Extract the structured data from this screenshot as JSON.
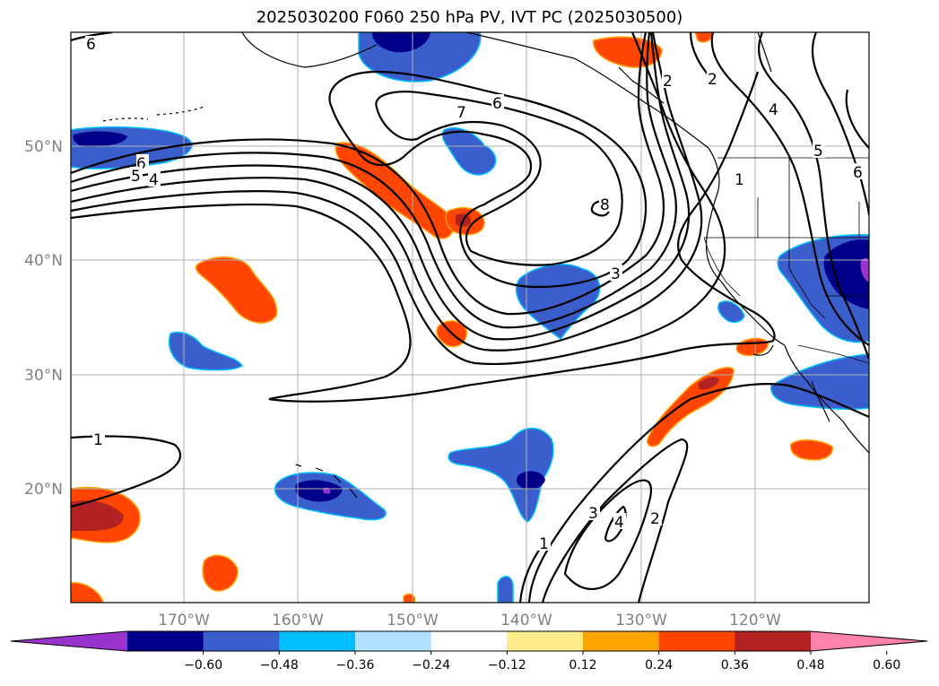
{
  "title": "2025030200 F060 250 hPa PV, IVT PC (2025030500)",
  "map": {
    "lon_labels": [
      "170°W",
      "160°W",
      "150°W",
      "140°W",
      "130°W",
      "120°W"
    ],
    "lat_labels": [
      "50°N",
      "40°N",
      "30°N",
      "20°N"
    ],
    "contour_labels": [
      "6",
      "6",
      "5",
      "4",
      "7",
      "6",
      "8",
      "3",
      "2",
      "2",
      "4",
      "5",
      "6",
      "1",
      "1",
      "1",
      "3",
      "4",
      "2"
    ]
  },
  "colorbar": {
    "tick_labels": [
      "−0.60",
      "−0.48",
      "−0.36",
      "−0.24",
      "−0.12",
      "0.12",
      "0.24",
      "0.36",
      "0.48",
      "0.60"
    ],
    "colors": [
      "#9933cc",
      "#00008b",
      "#3a5fcd",
      "#00bfff",
      "#b0e2ff",
      "#ffffff",
      "#ffec8b",
      "#ffa500",
      "#ff4500",
      "#b22222",
      "#ff82ab"
    ]
  }
}
